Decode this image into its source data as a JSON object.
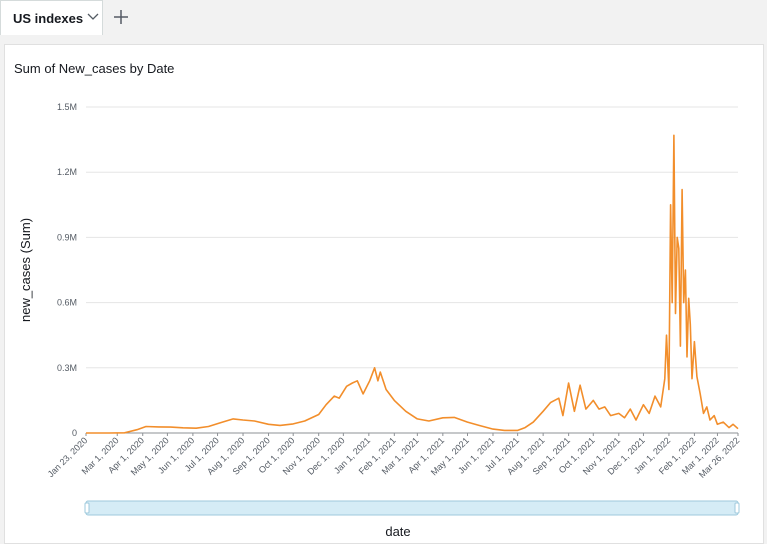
{
  "tabs": [
    {
      "label": "US indexes",
      "active": true
    }
  ],
  "icons": {
    "tab_menu": "chevron-down-icon",
    "add_tab": "plus-icon"
  },
  "visual": {
    "title": "Sum of New_cases by Date"
  },
  "colors": {
    "series": "#f28e2b",
    "scrollbar": "#d5ecf6"
  },
  "chart_data": {
    "type": "line",
    "title": "Sum of New_cases by Date",
    "xlabel": "date",
    "ylabel": "new_cases (Sum)",
    "ylim": [
      0,
      1500000
    ],
    "yticks": [
      {
        "value": 0,
        "label": "0"
      },
      {
        "value": 300000,
        "label": "0.3M"
      },
      {
        "value": 600000,
        "label": "0.6M"
      },
      {
        "value": 900000,
        "label": "0.9M"
      },
      {
        "value": 1200000,
        "label": "1.2M"
      },
      {
        "value": 1500000,
        "label": "1.5M"
      }
    ],
    "xlim": [
      "2020-01-23",
      "2022-03-26"
    ],
    "xticks": [
      {
        "date": "2020-01-23",
        "label": "Jan 23, 2020"
      },
      {
        "date": "2020-03-01",
        "label": "Mar 1, 2020"
      },
      {
        "date": "2020-04-01",
        "label": "Apr 1, 2020"
      },
      {
        "date": "2020-05-01",
        "label": "May 1, 2020"
      },
      {
        "date": "2020-06-01",
        "label": "Jun 1, 2020"
      },
      {
        "date": "2020-07-01",
        "label": "Jul 1, 2020"
      },
      {
        "date": "2020-08-01",
        "label": "Aug 1, 2020"
      },
      {
        "date": "2020-09-01",
        "label": "Sep 1, 2020"
      },
      {
        "date": "2020-10-01",
        "label": "Oct 1, 2020"
      },
      {
        "date": "2020-11-01",
        "label": "Nov 1, 2020"
      },
      {
        "date": "2020-12-01",
        "label": "Dec 1, 2020"
      },
      {
        "date": "2021-01-01",
        "label": "Jan 1, 2021"
      },
      {
        "date": "2021-02-01",
        "label": "Feb 1, 2021"
      },
      {
        "date": "2021-03-01",
        "label": "Mar 1, 2021"
      },
      {
        "date": "2021-04-01",
        "label": "Apr 1, 2021"
      },
      {
        "date": "2021-05-01",
        "label": "May 1, 2021"
      },
      {
        "date": "2021-06-01",
        "label": "Jun 1, 2021"
      },
      {
        "date": "2021-07-01",
        "label": "Jul 1, 2021"
      },
      {
        "date": "2021-08-01",
        "label": "Aug 1, 2021"
      },
      {
        "date": "2021-09-01",
        "label": "Sep 1, 2021"
      },
      {
        "date": "2021-10-01",
        "label": "Oct 1, 2021"
      },
      {
        "date": "2021-11-01",
        "label": "Nov 1, 2021"
      },
      {
        "date": "2021-12-01",
        "label": "Dec 1, 2021"
      },
      {
        "date": "2022-01-01",
        "label": "Jan 1, 2022"
      },
      {
        "date": "2022-02-01",
        "label": "Feb 1, 2022"
      },
      {
        "date": "2022-03-01",
        "label": "Mar 1, 2022"
      },
      {
        "date": "2022-03-26",
        "label": "Mar 26, 2022"
      }
    ],
    "grid": true,
    "series": [
      {
        "color": "#f28e2b",
        "points": [
          [
            "2020-01-23",
            0
          ],
          [
            "2020-02-20",
            0
          ],
          [
            "2020-03-10",
            1000
          ],
          [
            "2020-03-25",
            15000
          ],
          [
            "2020-04-05",
            30000
          ],
          [
            "2020-04-20",
            28000
          ],
          [
            "2020-05-05",
            27000
          ],
          [
            "2020-05-20",
            24000
          ],
          [
            "2020-06-05",
            22000
          ],
          [
            "2020-06-20",
            30000
          ],
          [
            "2020-07-05",
            48000
          ],
          [
            "2020-07-20",
            65000
          ],
          [
            "2020-08-01",
            60000
          ],
          [
            "2020-08-15",
            55000
          ],
          [
            "2020-09-01",
            40000
          ],
          [
            "2020-09-15",
            35000
          ],
          [
            "2020-10-01",
            42000
          ],
          [
            "2020-10-15",
            55000
          ],
          [
            "2020-11-01",
            85000
          ],
          [
            "2020-11-10",
            130000
          ],
          [
            "2020-11-20",
            170000
          ],
          [
            "2020-11-26",
            160000
          ],
          [
            "2020-12-05",
            215000
          ],
          [
            "2020-12-12",
            230000
          ],
          [
            "2020-12-18",
            240000
          ],
          [
            "2020-12-25",
            180000
          ],
          [
            "2021-01-02",
            240000
          ],
          [
            "2021-01-08",
            300000
          ],
          [
            "2021-01-12",
            240000
          ],
          [
            "2021-01-15",
            280000
          ],
          [
            "2021-01-22",
            200000
          ],
          [
            "2021-02-01",
            150000
          ],
          [
            "2021-02-15",
            100000
          ],
          [
            "2021-03-01",
            65000
          ],
          [
            "2021-03-15",
            55000
          ],
          [
            "2021-04-01",
            70000
          ],
          [
            "2021-04-15",
            72000
          ],
          [
            "2021-05-01",
            50000
          ],
          [
            "2021-05-15",
            35000
          ],
          [
            "2021-06-01",
            18000
          ],
          [
            "2021-06-15",
            12000
          ],
          [
            "2021-07-01",
            12000
          ],
          [
            "2021-07-10",
            25000
          ],
          [
            "2021-07-20",
            50000
          ],
          [
            "2021-08-01",
            100000
          ],
          [
            "2021-08-10",
            140000
          ],
          [
            "2021-08-20",
            160000
          ],
          [
            "2021-08-25",
            80000
          ],
          [
            "2021-09-01",
            230000
          ],
          [
            "2021-09-08",
            100000
          ],
          [
            "2021-09-15",
            220000
          ],
          [
            "2021-09-22",
            110000
          ],
          [
            "2021-10-01",
            150000
          ],
          [
            "2021-10-08",
            110000
          ],
          [
            "2021-10-15",
            120000
          ],
          [
            "2021-10-22",
            80000
          ],
          [
            "2021-11-01",
            90000
          ],
          [
            "2021-11-08",
            70000
          ],
          [
            "2021-11-15",
            110000
          ],
          [
            "2021-11-22",
            60000
          ],
          [
            "2021-12-01",
            130000
          ],
          [
            "2021-12-08",
            90000
          ],
          [
            "2021-12-15",
            170000
          ],
          [
            "2021-12-22",
            120000
          ],
          [
            "2021-12-27",
            250000
          ],
          [
            "2021-12-29",
            450000
          ],
          [
            "2022-01-01",
            200000
          ],
          [
            "2022-01-03",
            1050000
          ],
          [
            "2022-01-05",
            600000
          ],
          [
            "2022-01-07",
            1370000
          ],
          [
            "2022-01-09",
            550000
          ],
          [
            "2022-01-11",
            900000
          ],
          [
            "2022-01-13",
            850000
          ],
          [
            "2022-01-15",
            400000
          ],
          [
            "2022-01-17",
            1120000
          ],
          [
            "2022-01-19",
            600000
          ],
          [
            "2022-01-21",
            750000
          ],
          [
            "2022-01-23",
            350000
          ],
          [
            "2022-01-25",
            620000
          ],
          [
            "2022-01-27",
            500000
          ],
          [
            "2022-01-29",
            250000
          ],
          [
            "2022-02-01",
            420000
          ],
          [
            "2022-02-04",
            260000
          ],
          [
            "2022-02-08",
            180000
          ],
          [
            "2022-02-12",
            90000
          ],
          [
            "2022-02-16",
            120000
          ],
          [
            "2022-02-20",
            60000
          ],
          [
            "2022-02-25",
            80000
          ],
          [
            "2022-03-01",
            40000
          ],
          [
            "2022-03-08",
            50000
          ],
          [
            "2022-03-15",
            25000
          ],
          [
            "2022-03-20",
            40000
          ],
          [
            "2022-03-26",
            20000
          ]
        ]
      }
    ]
  },
  "scrollbar": {
    "label": "date"
  }
}
